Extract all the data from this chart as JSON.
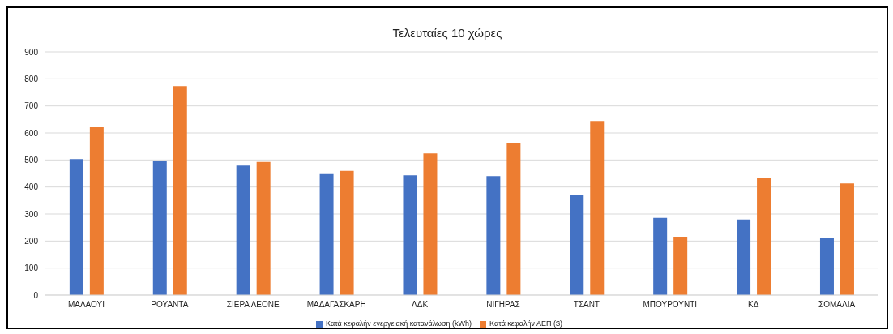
{
  "chart_data": {
    "type": "bar",
    "title": "Τελευταίες 10 χώρες",
    "categories": [
      "ΜΑΛΑΟΥΙ",
      "ΡΟΥΑΝΤΑ",
      "ΣΙΕΡΑ ΛΕΟΝΕ",
      "ΜΑΔΑΓΑΣΚΑΡΗ",
      "ΛΔΚ",
      "ΝΙΓΗΡΑΣ",
      "ΤΣΑΝΤ",
      "ΜΠΟΥΡΟΥΝΤΙ",
      "ΚΔ",
      "ΣΟΜΑΛΙΑ"
    ],
    "series": [
      {
        "name": "Κατά κεφαλήν ενεργειακή κατανάλωση (kWh)",
        "color": "#4472c4",
        "values": [
          503,
          496,
          479,
          448,
          443,
          440,
          372,
          286,
          280,
          210
        ]
      },
      {
        "name": "Κατά κεφαλήν ΑΕΠ ($)",
        "color": "#ed7d31",
        "values": [
          621,
          773,
          493,
          460,
          524,
          564,
          644,
          216,
          433,
          413
        ]
      }
    ],
    "ylim": [
      0,
      900
    ],
    "yticks": [
      0,
      100,
      200,
      300,
      400,
      500,
      600,
      700,
      800,
      900
    ],
    "grid": "y",
    "legend": "bottom"
  }
}
